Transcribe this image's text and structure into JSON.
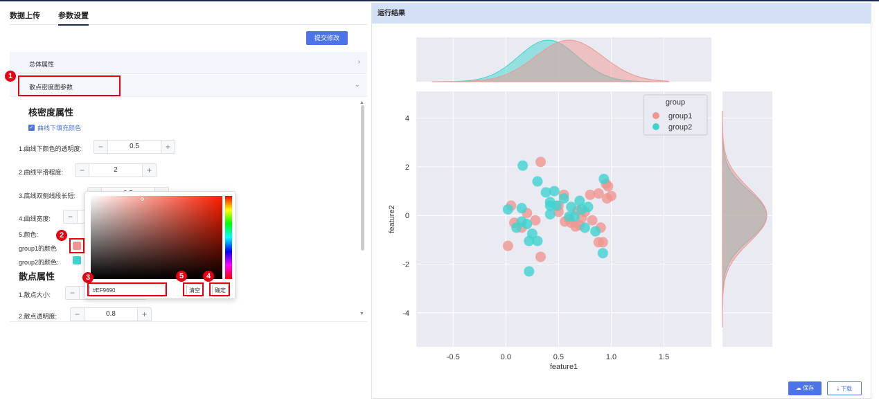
{
  "tabs": [
    {
      "label": "数据上传"
    },
    {
      "label": "参数设置"
    }
  ],
  "submit_label": "提交修改",
  "accordion": [
    {
      "label": "总体属性",
      "chevron": "›"
    },
    {
      "label": "散点密度图参数",
      "chevron": "⌄"
    }
  ],
  "kde_section": {
    "title": "核密度属性",
    "fill_checkbox_label": "曲线下填充颜色",
    "params": [
      {
        "label": "1.曲线下颜色的透明度:",
        "value": "0.5"
      },
      {
        "label": "2.曲线平滑程度:",
        "value": "2"
      },
      {
        "label": "3.底线双侧线段长短:",
        "value": "0.5"
      },
      {
        "label": "4.曲线宽度:",
        "value": ""
      }
    ],
    "color_label": "5.颜色:",
    "group1_color_label": "group1的颜色",
    "group2_color_label": "group2的颜色:",
    "group1_color": "#EF9690",
    "group2_color": "#3fd3cf"
  },
  "scatter_section": {
    "title": "散点属性",
    "params": [
      {
        "label": "1.散点大小:",
        "value": ""
      },
      {
        "label": "2.散点透明度:",
        "value": "0.8"
      }
    ]
  },
  "color_picker": {
    "hex_value": "#EF9690",
    "clear_label": "清空",
    "confirm_label": "确定"
  },
  "annotations": [
    "1",
    "2",
    "3",
    "4",
    "5"
  ],
  "result_panel": {
    "title": "运行结果",
    "save_label": "保存",
    "download_label": "下载"
  },
  "chart_data": {
    "type": "scatter",
    "xlabel": "feature1",
    "ylabel": "feature2",
    "xlim": [
      -0.85,
      1.95
    ],
    "ylim": [
      -5.4,
      5.1
    ],
    "xticks": [
      "-0.5",
      "0.0",
      "0.5",
      "1.0",
      "1.5"
    ],
    "yticks": [
      "4",
      "2",
      "0",
      "-2",
      "-4"
    ],
    "legend": {
      "title": "group",
      "placement": "top-right"
    },
    "series": [
      {
        "name": "group1",
        "color": "#EF9690",
        "points": [
          [
            0.33,
            2.2
          ],
          [
            0.05,
            0.4
          ],
          [
            0.08,
            -0.3
          ],
          [
            0.15,
            -0.5
          ],
          [
            0.2,
            0.1
          ],
          [
            0.28,
            -0.2
          ],
          [
            0.02,
            -1.25
          ],
          [
            0.5,
            0.4
          ],
          [
            0.55,
            0.85
          ],
          [
            0.6,
            -0.15
          ],
          [
            0.62,
            -0.3
          ],
          [
            0.68,
            0.2
          ],
          [
            0.7,
            -0.4
          ],
          [
            0.75,
            0.15
          ],
          [
            0.72,
            -0.1
          ],
          [
            0.8,
            0.85
          ],
          [
            0.82,
            -0.2
          ],
          [
            0.88,
            0.9
          ],
          [
            0.9,
            -0.5
          ],
          [
            0.92,
            -1.1
          ],
          [
            0.95,
            1.3
          ],
          [
            0.97,
            1.2
          ],
          [
            1.0,
            0.8
          ],
          [
            0.96,
            0.7
          ],
          [
            0.88,
            -1.1
          ],
          [
            0.33,
            -1.7
          ],
          [
            0.5,
            0.15
          ],
          [
            0.56,
            -0.25
          ],
          [
            0.66,
            -0.45
          ]
        ]
      },
      {
        "name": "group2",
        "color": "#3fd3cf",
        "points": [
          [
            0.16,
            2.05
          ],
          [
            0.3,
            1.4
          ],
          [
            0.38,
            0.95
          ],
          [
            0.46,
            1.0
          ],
          [
            0.42,
            0.4
          ],
          [
            0.48,
            0.4
          ],
          [
            0.42,
            0.05
          ],
          [
            0.6,
            -0.05
          ],
          [
            0.65,
            -0.05
          ],
          [
            0.7,
            0.6
          ],
          [
            0.72,
            0.25
          ],
          [
            0.78,
            0.35
          ],
          [
            0.75,
            -0.5
          ],
          [
            0.85,
            -0.65
          ],
          [
            0.93,
            1.5
          ],
          [
            0.02,
            0.25
          ],
          [
            0.15,
            0.3
          ],
          [
            0.15,
            -0.25
          ],
          [
            0.2,
            -0.35
          ],
          [
            0.25,
            -0.75
          ],
          [
            0.3,
            -1.05
          ],
          [
            0.22,
            -1.05
          ],
          [
            0.22,
            -2.3
          ],
          [
            0.92,
            -1.55
          ],
          [
            0.42,
            0.55
          ],
          [
            0.55,
            0.7
          ],
          [
            0.62,
            0.35
          ],
          [
            0.1,
            -0.5
          ]
        ]
      }
    ],
    "marginal_x": {
      "group1": {
        "mean": 0.6,
        "sd": 0.32
      },
      "group2": {
        "mean": 0.4,
        "sd": 0.28
      }
    },
    "marginal_y": {
      "group1": {
        "mean": 0.0,
        "sd": 1.1
      },
      "group2": {
        "mean": 0.0,
        "sd": 1.0
      }
    },
    "grid": true,
    "background": "#eaeaf2"
  }
}
